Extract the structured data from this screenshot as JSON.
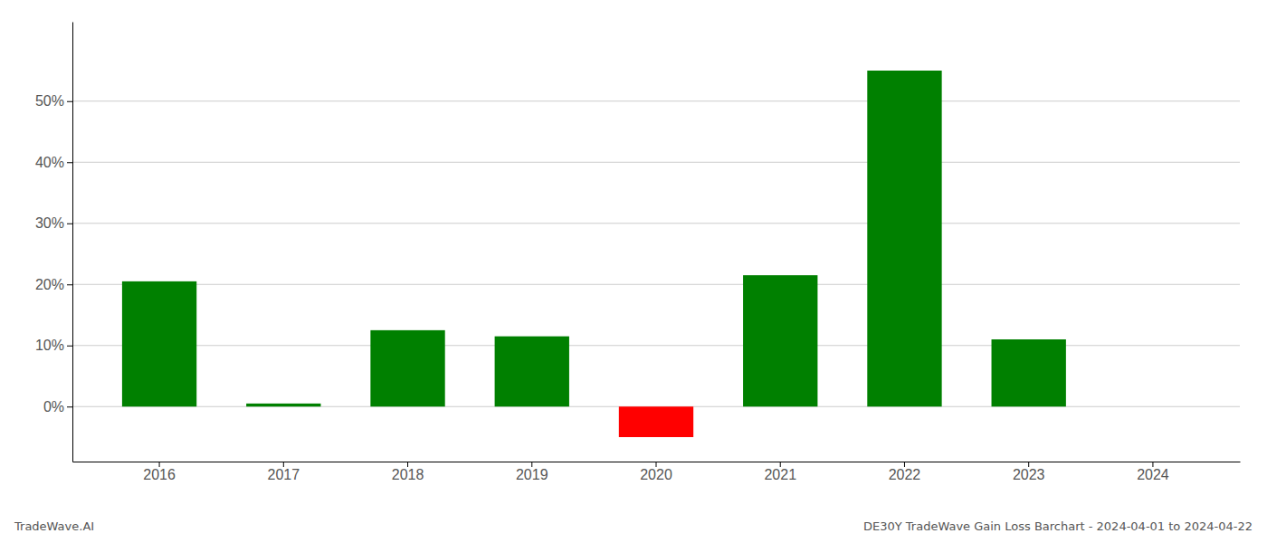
{
  "chart_data": {
    "type": "bar",
    "title": "DE30Y TradeWave Gain Loss Barchart - 2024-04-01 to 2024-04-22",
    "annotations": [
      "TradeWave.AI"
    ],
    "categories": [
      "2016",
      "2017",
      "2018",
      "2019",
      "2020",
      "2021",
      "2022",
      "2023",
      "2024"
    ],
    "values": [
      0.205,
      0.005,
      0.125,
      0.115,
      -0.05,
      0.215,
      0.55,
      0.11,
      0.0
    ],
    "colors": [
      "#008000",
      "#008000",
      "#008000",
      "#008000",
      "#ff0000",
      "#008000",
      "#008000",
      "#008000",
      "#008000"
    ],
    "ylim": [
      -0.09,
      0.63
    ],
    "yticks": [
      {
        "value": 0.0,
        "label": "0%"
      },
      {
        "value": 0.1,
        "label": "10%"
      },
      {
        "value": 0.2,
        "label": "20%"
      },
      {
        "value": 0.3,
        "label": "30%"
      },
      {
        "value": 0.4,
        "label": "40%"
      },
      {
        "value": 0.5,
        "label": "50%"
      }
    ],
    "grid": true
  }
}
